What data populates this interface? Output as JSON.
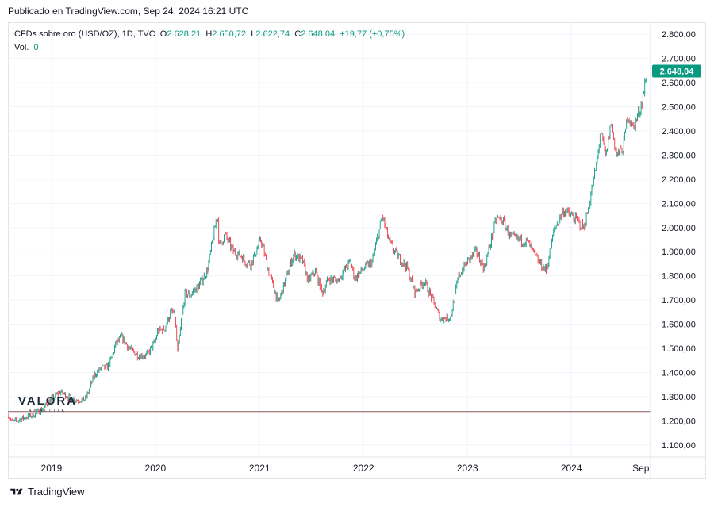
{
  "published": "Publicado en TradingView.com, Sep 24, 2024 16:21 UTC",
  "legend": {
    "symbol": "CFDs sobre oro (USD/OZ), 1D, TVC",
    "open_label": "O",
    "open": "2.628,21",
    "high_label": "H",
    "high": "2.650,72",
    "low_label": "L",
    "low": "2.622,74",
    "close_label": "C",
    "close": "2.648,04",
    "change": "+19,77 (+0,75%)",
    "vol_label": "Vol.",
    "vol_value": "0"
  },
  "footer": {
    "brand": "TradingView"
  },
  "watermark": {
    "main": "VALORA",
    "sub": "ANALITIK"
  },
  "colors": {
    "up": "#089981",
    "down": "#f23645",
    "grid": "#f0f3fa",
    "text": "#131722",
    "price_label_bg": "#089981"
  },
  "chart_data": {
    "type": "line",
    "title": "CFDs sobre oro (USD/OZ), 1D, TVC",
    "ylim": [
      1050,
      2850
    ],
    "y_ticks": [
      "2.800,00",
      "2.700,00",
      "2.600,00",
      "2.500,00",
      "2.400,00",
      "2.300,00",
      "2.200,00",
      "2.100,00",
      "2.000,00",
      "1.900,00",
      "1.800,00",
      "1.700,00",
      "1.600,00",
      "1.500,00",
      "1.400,00",
      "1.300,00",
      "1.200,00",
      "1.100,00"
    ],
    "y_tick_values": [
      2800,
      2700,
      2600,
      2500,
      2400,
      2300,
      2200,
      2100,
      2000,
      1900,
      1800,
      1700,
      1600,
      1500,
      1400,
      1300,
      1200,
      1100
    ],
    "x_ticks": [
      "2019",
      "2020",
      "2021",
      "2022",
      "2023",
      "2024",
      "Sep"
    ],
    "x_tick_dates": [
      "2019-01-01",
      "2020-01-01",
      "2021-01-01",
      "2022-01-01",
      "2023-01-01",
      "2024-01-01",
      "2024-09-01"
    ],
    "x_range": [
      "2018-08-01",
      "2024-09-24"
    ],
    "last_price_label": "2.648,04",
    "last_price": 2648.04,
    "horizontal_line": 1238,
    "series": [
      {
        "dates": [
          "2018-08-01",
          "2018-08-15",
          "2018-09-01",
          "2018-10-01",
          "2018-11-01",
          "2018-12-01",
          "2019-01-01",
          "2019-02-01",
          "2019-03-01",
          "2019-04-01",
          "2019-05-01",
          "2019-06-01",
          "2019-06-25",
          "2019-07-15",
          "2019-08-01",
          "2019-08-15",
          "2019-09-05",
          "2019-10-01",
          "2019-11-01",
          "2019-12-01",
          "2020-01-01",
          "2020-01-08",
          "2020-02-01",
          "2020-02-24",
          "2020-03-09",
          "2020-03-19",
          "2020-04-01",
          "2020-04-14",
          "2020-05-01",
          "2020-06-01",
          "2020-07-01",
          "2020-08-06",
          "2020-08-12",
          "2020-09-01",
          "2020-10-01",
          "2020-11-01",
          "2020-11-09",
          "2020-12-01",
          "2021-01-06",
          "2021-02-01",
          "2021-03-08",
          "2021-04-01",
          "2021-05-01",
          "2021-06-01",
          "2021-06-20",
          "2021-07-15",
          "2021-08-09",
          "2021-09-01",
          "2021-10-01",
          "2021-11-16",
          "2021-12-01",
          "2022-01-01",
          "2022-02-01",
          "2022-03-08",
          "2022-04-01",
          "2022-05-01",
          "2022-06-01",
          "2022-07-01",
          "2022-08-01",
          "2022-09-01",
          "2022-09-28",
          "2022-11-03",
          "2022-12-01",
          "2023-01-01",
          "2023-02-01",
          "2023-03-01",
          "2023-04-13",
          "2023-05-04",
          "2023-06-01",
          "2023-07-01",
          "2023-08-01",
          "2023-09-01",
          "2023-10-05",
          "2023-11-01",
          "2023-12-04",
          "2024-01-01",
          "2024-02-14",
          "2024-03-01",
          "2024-03-15",
          "2024-04-01",
          "2024-04-12",
          "2024-05-01",
          "2024-05-20",
          "2024-06-07",
          "2024-07-01",
          "2024-07-17",
          "2024-08-05",
          "2024-09-01",
          "2024-09-24"
        ],
        "values": [
          1225,
          1195,
          1200,
          1215,
          1225,
          1250,
          1290,
          1320,
          1300,
          1285,
          1290,
          1390,
          1420,
          1420,
          1460,
          1520,
          1545,
          1500,
          1470,
          1470,
          1530,
          1570,
          1580,
          1650,
          1640,
          1480,
          1610,
          1730,
          1720,
          1760,
          1820,
          2060,
          1920,
          1970,
          1900,
          1880,
          1860,
          1850,
          1950,
          1820,
          1690,
          1780,
          1890,
          1860,
          1780,
          1820,
          1730,
          1790,
          1780,
          1860,
          1790,
          1830,
          1860,
          2050,
          1940,
          1880,
          1840,
          1730,
          1780,
          1700,
          1620,
          1630,
          1800,
          1860,
          1900,
          1830,
          2040,
          2030,
          1960,
          1950,
          1940,
          1870,
          1820,
          1990,
          2070,
          2050,
          2000,
          2080,
          2170,
          2280,
          2400,
          2290,
          2440,
          2300,
          2330,
          2470,
          2410,
          2500,
          2648
        ]
      }
    ]
  }
}
